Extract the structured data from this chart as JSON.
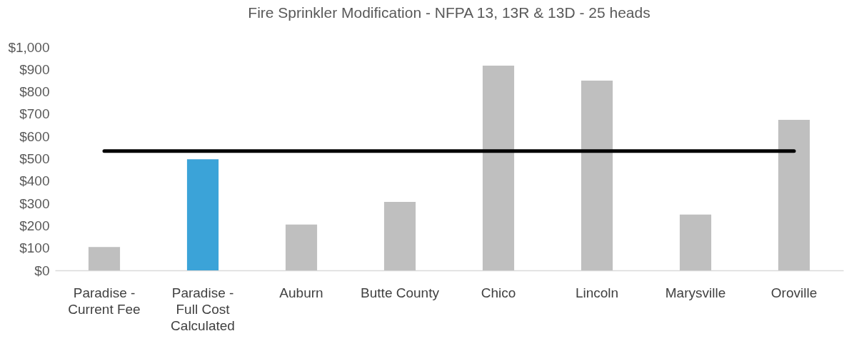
{
  "chart_data": {
    "type": "bar",
    "title": "Fire Sprinkler Modification - NFPA 13, 13R & 13D - 25 heads",
    "categories": [
      "Paradise - Current Fee",
      "Paradise - Full Cost Calculated",
      "Auburn",
      "Butte County",
      "Chico",
      "Lincoln",
      "Marysville",
      "Oroville"
    ],
    "series": [
      {
        "colors": [
          "#bfbfbf",
          "#3ba3d8",
          "#bfbfbf",
          "#bfbfbf",
          "#bfbfbf",
          "#bfbfbf",
          "#bfbfbf",
          "#bfbfbf"
        ],
        "values": [
          105,
          498,
          205,
          307,
          917,
          850,
          250,
          674
        ]
      },
      {
        "type": "line",
        "color": "#000000",
        "values": [
          534,
          534,
          534,
          534,
          534,
          534,
          534,
          534
        ]
      }
    ],
    "ylim": [
      0,
      1000
    ],
    "yticks": [
      {
        "value": 0,
        "label": "$0"
      },
      {
        "value": 100,
        "label": "$100"
      },
      {
        "value": 200,
        "label": "$200"
      },
      {
        "value": 300,
        "label": "$300"
      },
      {
        "value": 400,
        "label": "$400"
      },
      {
        "value": 500,
        "label": "$500"
      },
      {
        "value": 600,
        "label": "$600"
      },
      {
        "value": 700,
        "label": "$700"
      },
      {
        "value": 800,
        "label": "$800"
      },
      {
        "value": 900,
        "label": "$900"
      },
      {
        "value": 1000,
        "label": "$1,000"
      }
    ],
    "grid": false
  }
}
